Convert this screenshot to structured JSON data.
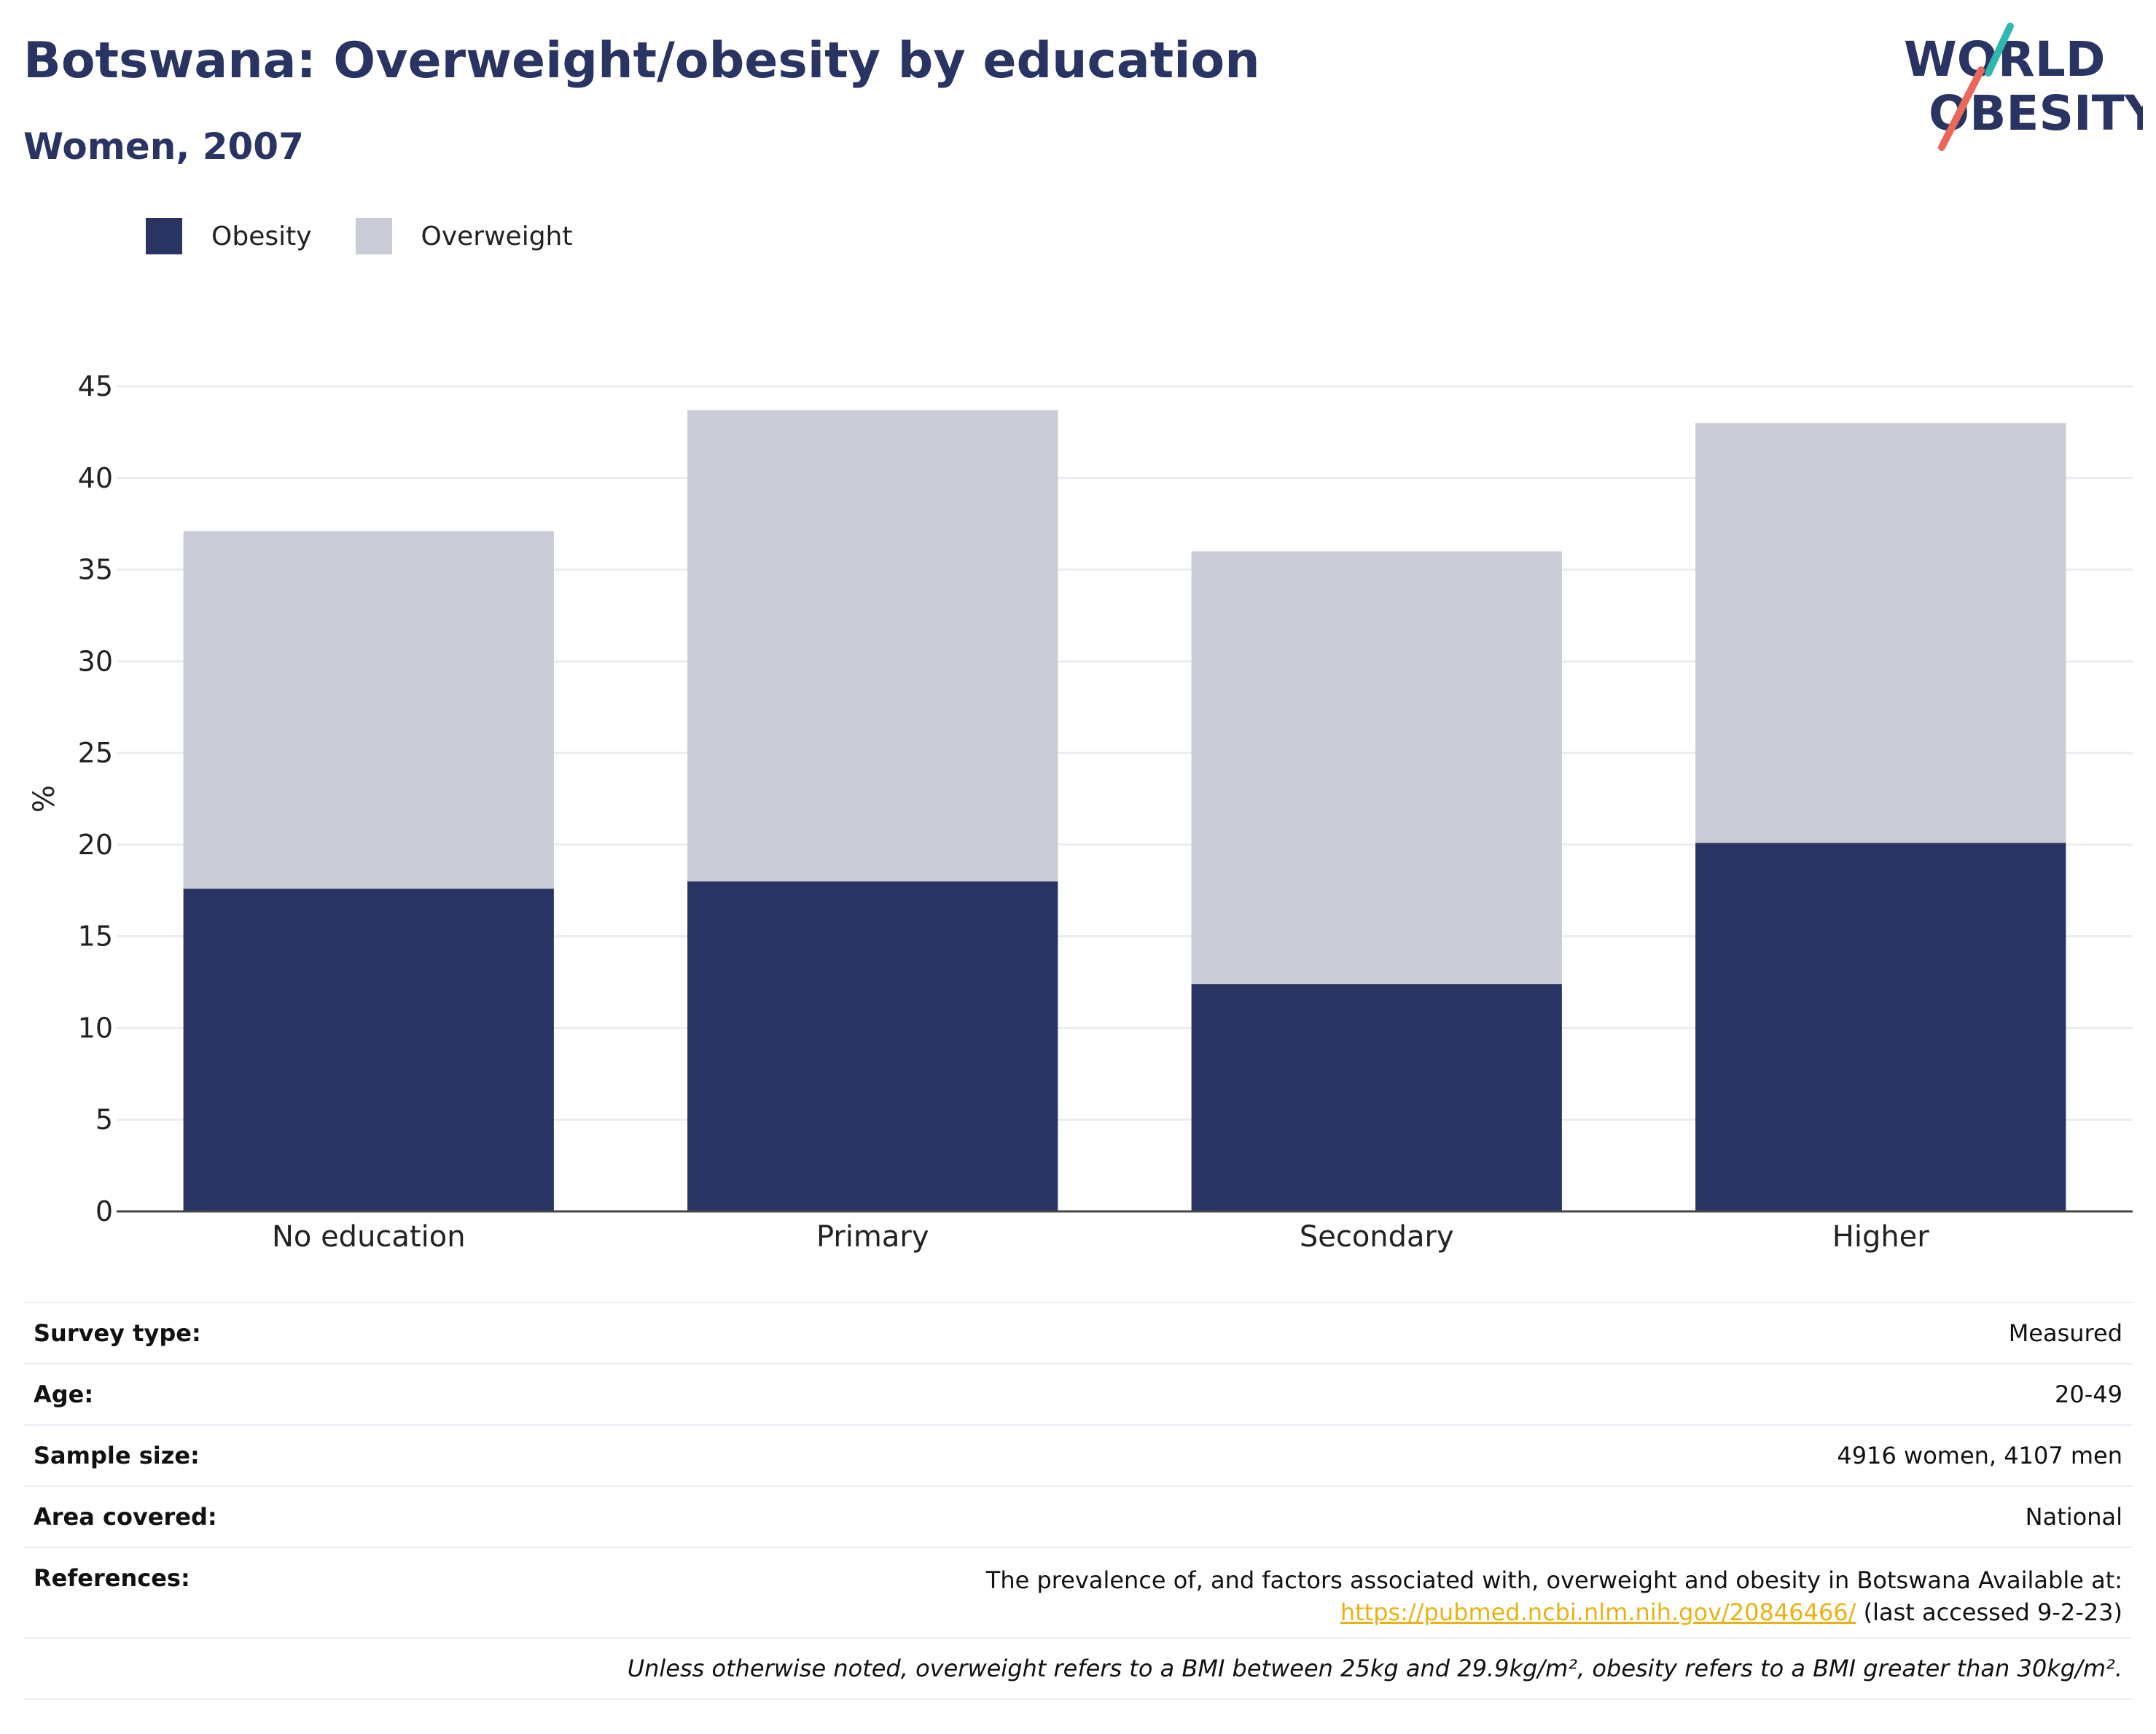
{
  "header": {
    "title": "Botswana: Overweight/obesity by education",
    "subtitle": "Women, 2007"
  },
  "logo": {
    "line1": "WORLD",
    "line2": "OBESITY"
  },
  "colors": {
    "obesity": "#293462",
    "overweight": "#c9cbd7",
    "title": "#293462",
    "link": "#e8b217",
    "logo_teal": "#2fb7b0",
    "logo_coral": "#e8685a"
  },
  "legend": [
    {
      "label": "Obesity",
      "color": "#293462"
    },
    {
      "label": "Overweight",
      "color": "#c9cbd7"
    }
  ],
  "chart_data": {
    "type": "bar",
    "stacked": true,
    "categories": [
      "No education",
      "Primary",
      "Secondary",
      "Higher"
    ],
    "series": [
      {
        "name": "Obesity",
        "values": [
          17.6,
          18.0,
          12.4,
          20.1
        ]
      },
      {
        "name": "Overweight",
        "values": [
          19.5,
          25.7,
          23.6,
          22.9
        ]
      }
    ],
    "title": "",
    "xlabel": "",
    "ylabel": "%",
    "ylim": [
      0,
      45
    ],
    "yticks": [
      0,
      5,
      10,
      15,
      20,
      25,
      30,
      35,
      40,
      45
    ],
    "grid": true,
    "legend_position": "top-left"
  },
  "info": {
    "survey_type": {
      "label": "Survey type:",
      "value": "Measured"
    },
    "age": {
      "label": "Age:",
      "value": "20-49"
    },
    "sample_size": {
      "label": "Sample size:",
      "value": "4916 women, 4107 men"
    },
    "area_covered": {
      "label": "Area covered:",
      "value": "National"
    },
    "references": {
      "label": "References:",
      "text": "The prevalence of, and factors associated with, overweight and obesity in Botswana Available at:",
      "link": "https://pubmed.ncbi.nlm.nih.gov/20846466/",
      "suffix": " (last accessed 9-2-23)"
    },
    "note": "Unless otherwise noted, overweight refers to a BMI between 25kg and 29.9kg/m², obesity refers to a BMI greater than 30kg/m²."
  }
}
